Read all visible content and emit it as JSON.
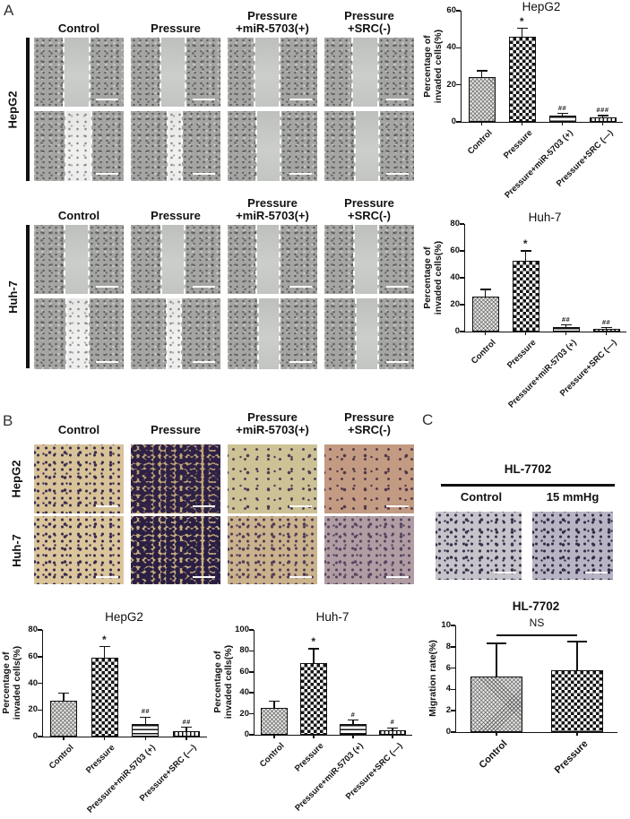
{
  "figure": {
    "panel_a": {
      "letter": "A",
      "groups": [
        {
          "row_label": "HepG2",
          "headers": [
            "Control",
            "Pressure",
            "Pressure\n+miR-5703(+)",
            "Pressure\n+SRC(-)"
          ],
          "rows": [
            [
              {
                "l": 33,
                "r": 62
              },
              {
                "l": 33,
                "r": 61
              },
              {
                "l": 30,
                "r": 58
              },
              {
                "l": 31,
                "r": 60
              }
            ],
            [
              {
                "l": 35,
                "r": 64,
                "bright": true,
                "cells": true
              },
              {
                "l": 41,
                "r": 57,
                "bright": true,
                "cells": true
              },
              {
                "l": 32,
                "r": 59
              },
              {
                "l": 34,
                "r": 61
              }
            ]
          ]
        },
        {
          "row_label": "Huh-7",
          "headers": [
            "Control",
            "Pressure",
            "Pressure\n+miR-5703(+)",
            "Pressure\n+SRC(-)"
          ],
          "rows": [
            [
              {
                "l": 34,
                "r": 61
              },
              {
                "l": 34,
                "r": 60
              },
              {
                "l": 32,
                "r": 58
              },
              {
                "l": 33,
                "r": 60
              }
            ],
            [
              {
                "l": 36,
                "r": 61,
                "bright": true,
                "cells": true
              },
              {
                "l": 40,
                "r": 56,
                "bright": true,
                "cells": true
              },
              {
                "l": 34,
                "r": 58
              },
              {
                "l": 35,
                "r": 60
              }
            ]
          ]
        }
      ]
    },
    "panel_b": {
      "letter": "B",
      "headers": [
        "Control",
        "Pressure",
        "Pressure\n+miR-5703(+)",
        "Pressure\n+SRC(-)"
      ],
      "rows": [
        {
          "row_label": "HepG2",
          "images": [
            {
              "base": "#d8c298",
              "dot": "#3a2c50",
              "density": "medium"
            },
            {
              "base": "#c0a478",
              "dot": "#2e2145",
              "density": "dense"
            },
            {
              "base": "#cdc295",
              "dot": "#4a3b55",
              "density": "sparse"
            },
            {
              "base": "#c29b82",
              "dot": "#513549",
              "density": "sparse"
            }
          ]
        },
        {
          "row_label": "Huh-7",
          "images": [
            {
              "base": "#dbc59b",
              "dot": "#382a4e",
              "density": "medium"
            },
            {
              "base": "#c9ad80",
              "dot": "#2a1f43",
              "density": "dense"
            },
            {
              "base": "#cab28c",
              "dot": "#4e3a58",
              "density": "medium"
            },
            {
              "base": "#b09da3",
              "dot": "#564361",
              "density": "medium"
            }
          ]
        }
      ]
    },
    "panel_c": {
      "letter": "C",
      "group_title": "HL-7702",
      "headers": [
        "Control",
        "15 mmHg"
      ],
      "images": [
        {
          "base": "#c6c3cb",
          "dot": "#38304a",
          "density": "medium"
        },
        {
          "base": "#b9b4c4",
          "dot": "#322a46",
          "density": "medium"
        }
      ]
    }
  },
  "chart_data": [
    {
      "id": "a_hepg2",
      "type": "bar",
      "title": "HepG2",
      "ylabel": [
        "Percentage of",
        "invaded cells(%)"
      ],
      "xlabel": "",
      "ylim": [
        0,
        60
      ],
      "yticks": [
        0,
        20,
        40,
        60
      ],
      "grid": false,
      "legend": "none",
      "categories": [
        "Control",
        "Pressure",
        "Pressure+miR-5703 (+)",
        "Pressure+SRC (—)"
      ],
      "values": [
        24,
        46,
        3.5,
        2.5
      ],
      "errors": [
        3.5,
        4.5,
        1,
        1
      ],
      "annotations": [
        "",
        "*",
        "##",
        "###"
      ],
      "patterns": [
        "fine-check",
        "checkerboard",
        "hlines",
        "vlines"
      ]
    },
    {
      "id": "a_huh7",
      "type": "bar",
      "title": "Huh-7",
      "ylabel": [
        "Percentage of",
        "invaded cells(%)"
      ],
      "xlabel": "",
      "ylim": [
        0,
        80
      ],
      "yticks": [
        0,
        20,
        40,
        60,
        80
      ],
      "grid": false,
      "legend": "none",
      "categories": [
        "Control",
        "Pressure",
        "Pressure+miR-5703 (+)",
        "Pressure+SRC (—)"
      ],
      "values": [
        26,
        53,
        3.5,
        2
      ],
      "errors": [
        5.5,
        7,
        1.5,
        1
      ],
      "annotations": [
        "",
        "*",
        "##",
        "##"
      ],
      "patterns": [
        "fine-check",
        "checkerboard",
        "hlines",
        "vlines"
      ]
    },
    {
      "id": "b_hepg2",
      "type": "bar",
      "title": "HepG2",
      "ylabel": [
        "Percentage of",
        "invaded cells(%)"
      ],
      "xlabel": "",
      "ylim": [
        0,
        80
      ],
      "yticks": [
        0,
        20,
        40,
        60,
        80
      ],
      "grid": false,
      "legend": "none",
      "categories": [
        "Control",
        "Pressure",
        "Pressure+miR-5703 (+)",
        "Pressure+SRC (—)"
      ],
      "values": [
        27,
        59,
        9.5,
        4
      ],
      "errors": [
        5.5,
        8.5,
        5,
        3
      ],
      "annotations": [
        "",
        "*",
        "##",
        "##"
      ],
      "patterns": [
        "fine-check",
        "checkerboard",
        "hlines",
        "vlines"
      ]
    },
    {
      "id": "b_huh7",
      "type": "bar",
      "title": "Huh-7",
      "ylabel": [
        "Percentage of",
        "invaded cells(%)"
      ],
      "xlabel": "",
      "ylim": [
        0,
        100
      ],
      "yticks": [
        0,
        20,
        40,
        60,
        80,
        100
      ],
      "grid": false,
      "legend": "none",
      "categories": [
        "Control",
        "Pressure",
        "Pressure+miR-5703 (+)",
        "Pressure+SRC (—)"
      ],
      "values": [
        26,
        68,
        10,
        4
      ],
      "errors": [
        6,
        14,
        4,
        2.5
      ],
      "annotations": [
        "",
        "*",
        "#",
        "#"
      ],
      "patterns": [
        "fine-check",
        "checkerboard",
        "hlines",
        "vlines"
      ]
    },
    {
      "id": "c",
      "type": "bar",
      "title": "HL-7702",
      "title_bold": true,
      "ylabel": [
        "Migration rate(%)"
      ],
      "xlabel": "",
      "ylim": [
        0,
        10
      ],
      "yticks": [
        0,
        2,
        4,
        6,
        8,
        10
      ],
      "grid": false,
      "legend": "none",
      "categories": [
        "Control",
        "Pressure"
      ],
      "values": [
        5.2,
        5.8
      ],
      "errors": [
        3.1,
        2.7
      ],
      "annotations": [
        "",
        ""
      ],
      "patterns": [
        "fine-check",
        "checkerboard"
      ],
      "ns": "NS"
    }
  ]
}
